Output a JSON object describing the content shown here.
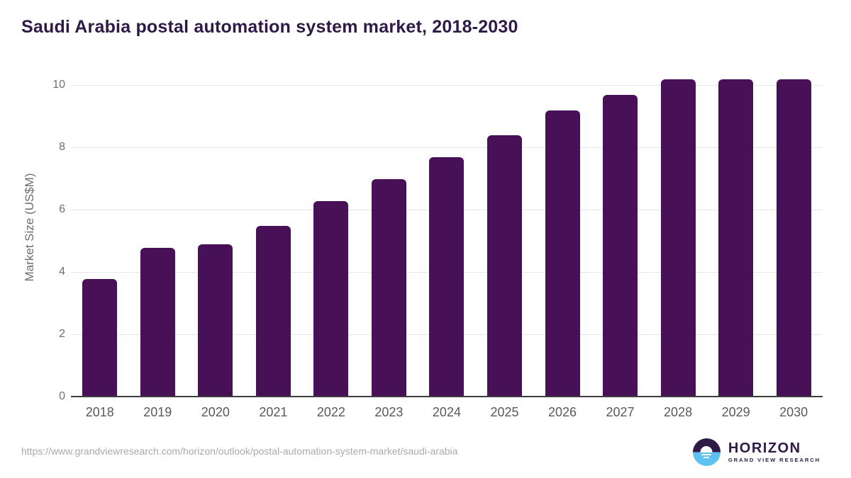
{
  "title": "Saudi Arabia postal automation system market, 2018-2030",
  "source_url": "https://www.grandviewresearch.com/horizon/outlook/postal-automation-system-market/saudi-arabia",
  "logo": {
    "name": "HORIZON",
    "subtitle": "GRAND VIEW RESEARCH"
  },
  "colors": {
    "bar": "#481157",
    "title": "#2e1a47",
    "axis_text": "#6d6e71",
    "gridline": "#e5e5e6",
    "axis_line": "#3d3d3f",
    "url_text": "#a7a9ac",
    "logo_dark": "#2e1a47",
    "logo_blue": "#5ec1ef"
  },
  "chart_data": {
    "type": "bar",
    "title": "Saudi Arabia postal automation system market, 2018-2030",
    "categories": [
      "2018",
      "2019",
      "2020",
      "2021",
      "2022",
      "2023",
      "2024",
      "2025",
      "2026",
      "2027",
      "2028",
      "2029",
      "2030"
    ],
    "values": [
      3.8,
      4.8,
      4.9,
      5.5,
      6.3,
      7.0,
      7.7,
      8.4,
      9.2,
      9.7,
      10.2,
      10.2,
      10.2
    ],
    "xlabel": "",
    "ylabel": "Market Size (US$M)",
    "ylim": [
      0,
      10.45
    ],
    "yticks": [
      0,
      2,
      4,
      6,
      8,
      10
    ],
    "grid": true,
    "legend": false,
    "bar_color": "#481157"
  }
}
